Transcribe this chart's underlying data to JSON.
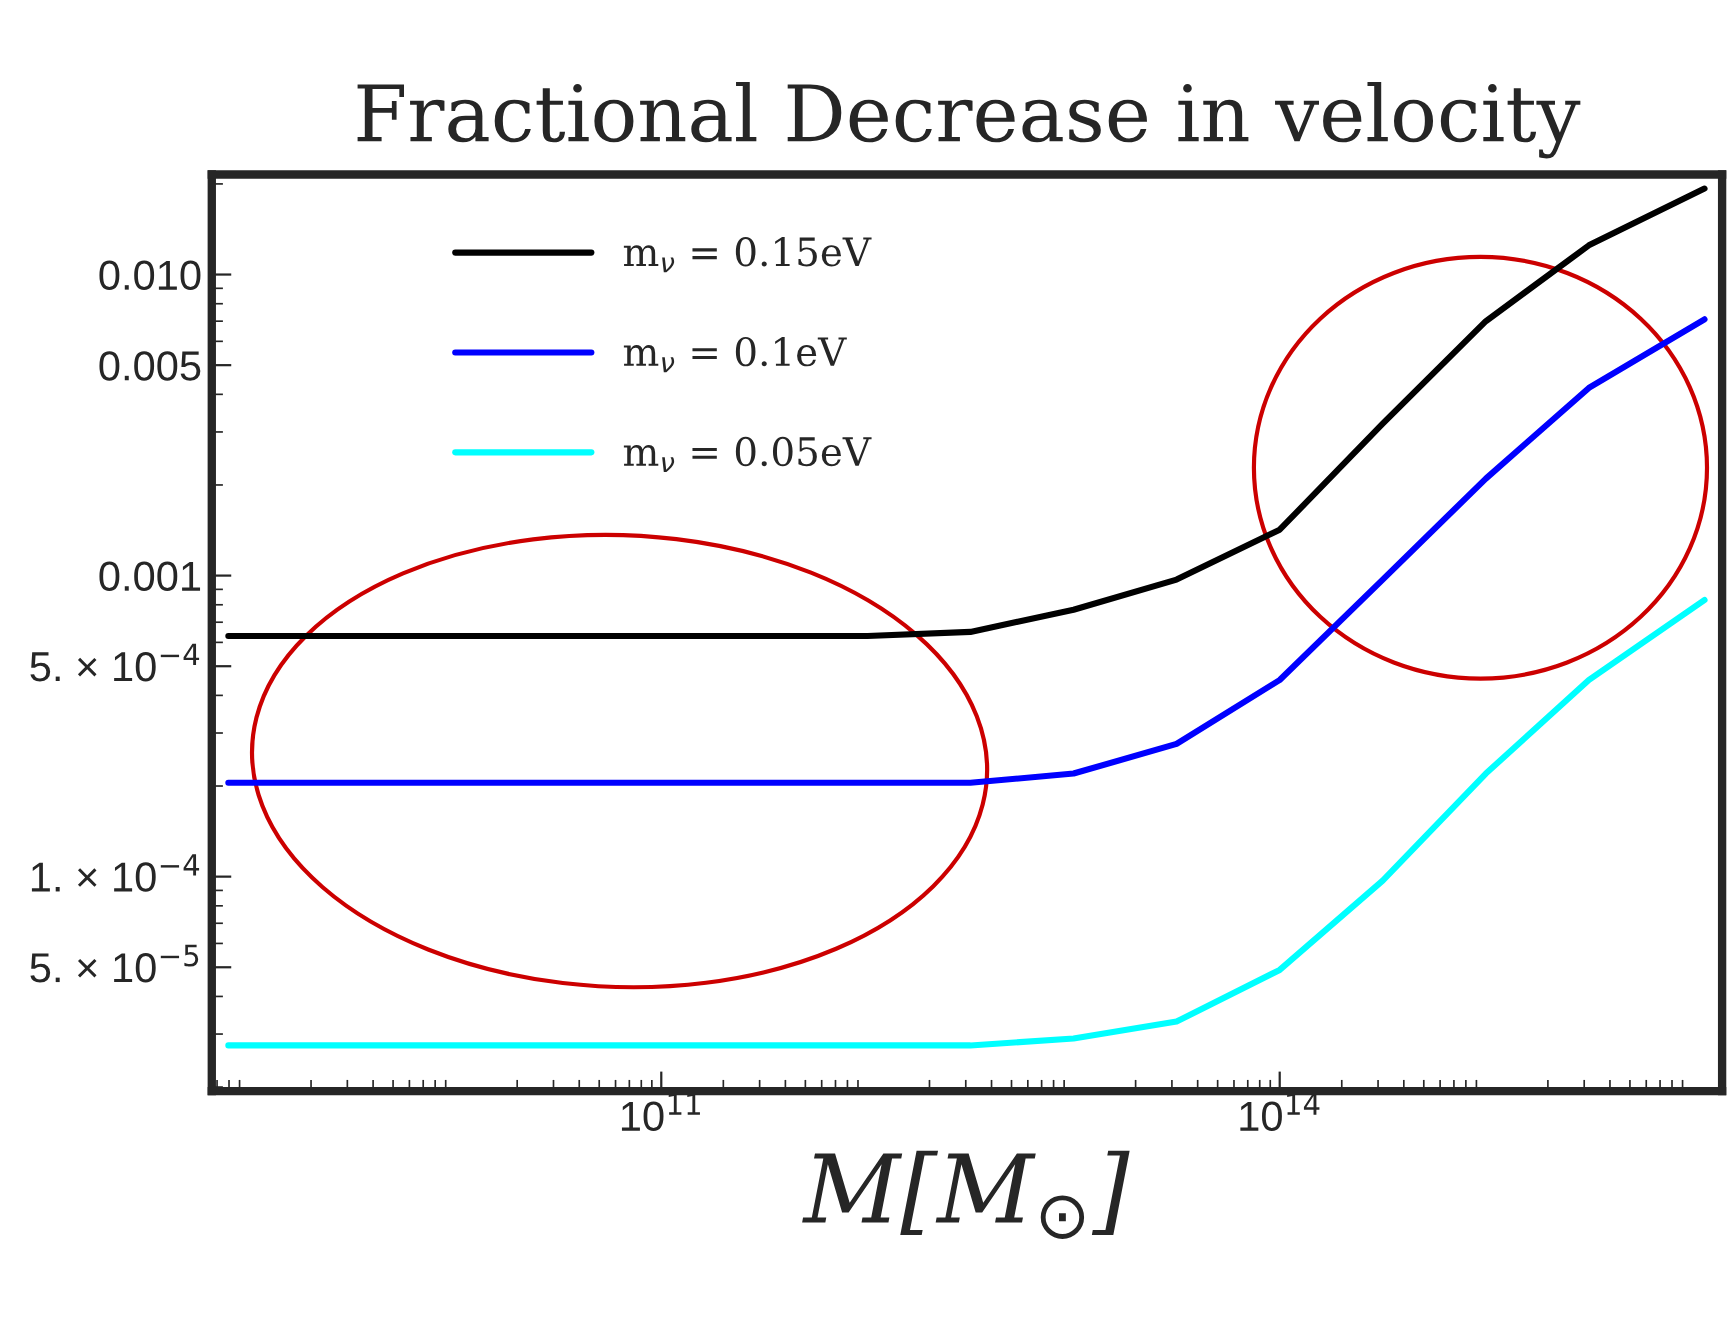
{
  "chart_data": {
    "type": "line",
    "title": "Fractional Decrease in velocity",
    "xlabel": "M[M$_{⊙}$]",
    "log": "xy",
    "legend": "top left",
    "grid": false,
    "xlim": [
      660000000.0,
      1.4e+16
    ],
    "xticks": [
      {
        "value": 100000000000.0,
        "label": "10$^{11}$"
      },
      {
        "value": 100000000000000.0,
        "label": "10$^{14}$"
      }
    ],
    "ylim": [
      1.94e-05,
      0.0215
    ],
    "yticks": [
      {
        "value": 0.01,
        "label": "0.010"
      },
      {
        "value": 0.005,
        "label": "0.005"
      },
      {
        "value": 0.001,
        "label": "0.001"
      },
      {
        "value": 0.0005,
        "label": "5. × 10$^{−4}$"
      },
      {
        "value": 0.0001,
        "label": "1. × 10$^{−4}$"
      },
      {
        "value": 5e-05,
        "label": "5. × 10$^{−5}$"
      }
    ],
    "x": [
      794000000.0,
      10000000000.0,
      100000000000.0,
      1000000000000.0,
      3160000000000.0,
      10000000000000.0,
      31600000000000.0,
      100000000000000.0,
      316000000000000.0,
      1000000000000000.0,
      3160000000000000.0,
      1.15e+16
    ],
    "series": [
      {
        "name": "m$_{ν}$ = 0.15eV",
        "color": "#000000",
        "values": [
          0.00063,
          0.00063,
          0.00063,
          0.00063,
          0.00065,
          0.00077,
          0.00097,
          0.00142,
          0.0032,
          0.007,
          0.0125,
          0.0193
        ]
      },
      {
        "name": "m$_{ν}$ = 0.1eV",
        "color": "#0000ff",
        "values": [
          0.000205,
          0.000205,
          0.000205,
          0.000205,
          0.000205,
          0.00022,
          0.000276,
          0.00045,
          0.00097,
          0.0021,
          0.0042,
          0.0071
        ]
      },
      {
        "name": "m$_{ν}$ = 0.05eV",
        "color": "#00ffff",
        "values": [
          2.75e-05,
          2.75e-05,
          2.75e-05,
          2.75e-05,
          2.75e-05,
          2.9e-05,
          3.3e-05,
          4.9e-05,
          9.7e-05,
          0.00022,
          0.00045,
          0.00083
        ]
      }
    ]
  }
}
